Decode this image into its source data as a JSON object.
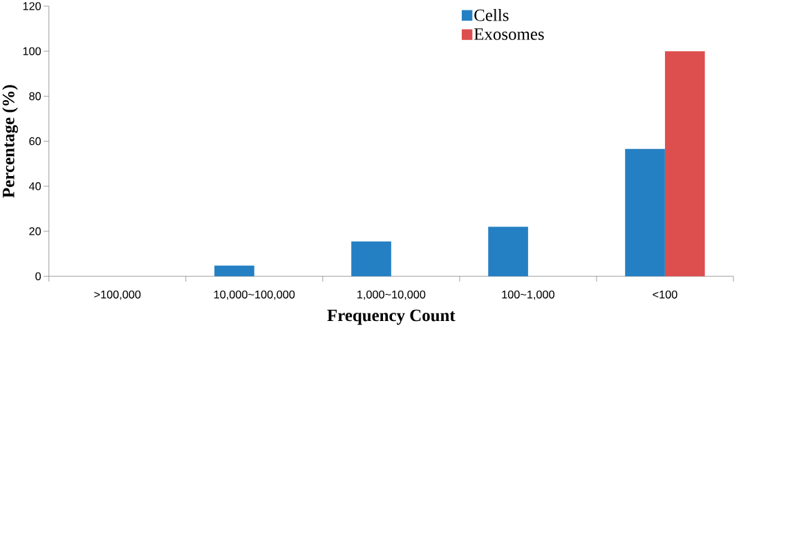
{
  "chart_data": {
    "type": "bar",
    "xlabel": "Frequency Count",
    "ylabel": "Percentage (%)",
    "categories": [
      ">100,000",
      "10,000~100,000",
      "1,000~10,000",
      "100~1,000",
      "<100"
    ],
    "series": [
      {
        "name": "Cells",
        "color": "#2580c3",
        "values": [
          0,
          4.7,
          15.5,
          22,
          56.6
        ]
      },
      {
        "name": "Exosomes",
        "color": "#dd4f4f",
        "values": [
          0,
          0,
          0,
          0,
          100
        ]
      }
    ],
    "ylim": [
      0,
      120
    ],
    "yticks": [
      0,
      20,
      40,
      60,
      80,
      100,
      120
    ],
    "grid": false,
    "legend": "top"
  }
}
